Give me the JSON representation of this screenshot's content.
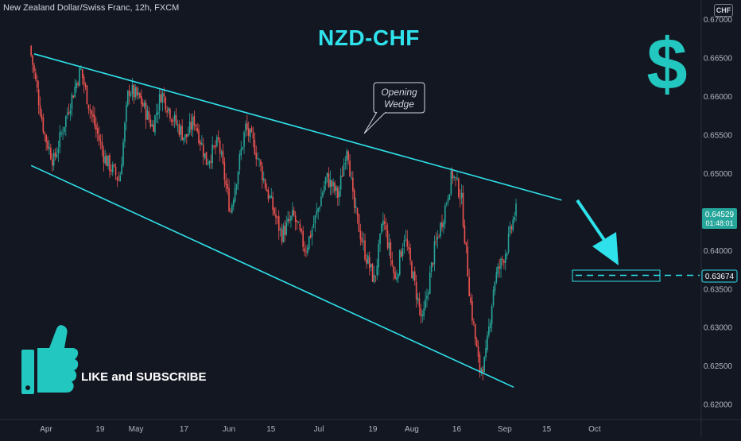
{
  "header": {
    "symbol_info": "New Zealand Dollar/Swiss Franc, 12h, FXCM",
    "currency": "CHF"
  },
  "chart_data": {
    "type": "candlestick",
    "title": "NZD-CHF",
    "ylim": [
      0.618,
      0.6725
    ],
    "y_ticks": [
      "0.67000",
      "0.66500",
      "0.66000",
      "0.65500",
      "0.65000",
      "0.64500",
      "0.64000",
      "0.63500",
      "0.63000",
      "0.62500",
      "0.62000"
    ],
    "x_ticks": [
      "Apr",
      "19",
      "May",
      "17",
      "Jun",
      "15",
      "Jul",
      "19",
      "Aug",
      "16",
      "Sep",
      "15",
      "Oct"
    ],
    "price_path": [
      [
        "03-27",
        0.6665
      ],
      [
        "04-01",
        0.655
      ],
      [
        "04-04",
        0.6515
      ],
      [
        "04-09",
        0.6585
      ],
      [
        "04-13",
        0.6635
      ],
      [
        "04-16",
        0.6585
      ],
      [
        "04-21",
        0.652
      ],
      [
        "04-26",
        0.649
      ],
      [
        "04-29",
        0.661
      ],
      [
        "05-03",
        0.6595
      ],
      [
        "05-07",
        0.656
      ],
      [
        "05-10",
        0.6605
      ],
      [
        "05-14",
        0.657
      ],
      [
        "05-18",
        0.6545
      ],
      [
        "05-21",
        0.657
      ],
      [
        "05-25",
        0.6515
      ],
      [
        "05-29",
        0.654
      ],
      [
        "06-02",
        0.645
      ],
      [
        "06-07",
        0.656
      ],
      [
        "06-10",
        0.6535
      ],
      [
        "06-14",
        0.648
      ],
      [
        "06-19",
        0.642
      ],
      [
        "06-23",
        0.6445
      ],
      [
        "06-27",
        0.64
      ],
      [
        "07-01",
        0.645
      ],
      [
        "07-04",
        0.6495
      ],
      [
        "07-08",
        0.647
      ],
      [
        "07-11",
        0.654
      ],
      [
        "07-13",
        0.646
      ],
      [
        "07-17",
        0.6395
      ],
      [
        "07-20",
        0.636
      ],
      [
        "07-23",
        0.644
      ],
      [
        "07-27",
        0.636
      ],
      [
        "07-30",
        0.642
      ],
      [
        "08-03",
        0.6345
      ],
      [
        "08-05",
        0.6305
      ],
      [
        "08-09",
        0.64
      ],
      [
        "08-12",
        0.6445
      ],
      [
        "08-15",
        0.65
      ],
      [
        "08-18",
        0.647
      ],
      [
        "08-21",
        0.6335
      ],
      [
        "08-24",
        0.6245
      ],
      [
        "08-26",
        0.6255
      ],
      [
        "08-29",
        0.636
      ],
      [
        "09-02",
        0.64
      ],
      [
        "09-05",
        0.645
      ]
    ],
    "upper_trendline": [
      [
        "03-28",
        0.6655
      ],
      [
        "09-20",
        0.6465
      ]
    ],
    "lower_trendline": [
      [
        "03-27",
        0.651
      ],
      [
        "09-04",
        0.6222
      ]
    ],
    "target_level": 0.63674,
    "annotations": {
      "callout": "Opening Wedge",
      "like": "LIKE and SUBSCRIBE"
    },
    "last_price": {
      "value": "0.64529",
      "countdown": "01:48:01"
    },
    "target_label": "0.63674"
  },
  "colors": {
    "background": "#131722",
    "up": "#26a69a",
    "down": "#ef5350",
    "trendline": "#2ee1ea",
    "accent": "#22c7c0",
    "axis_text": "#b2b5be",
    "price_badge": "#26a69a"
  }
}
